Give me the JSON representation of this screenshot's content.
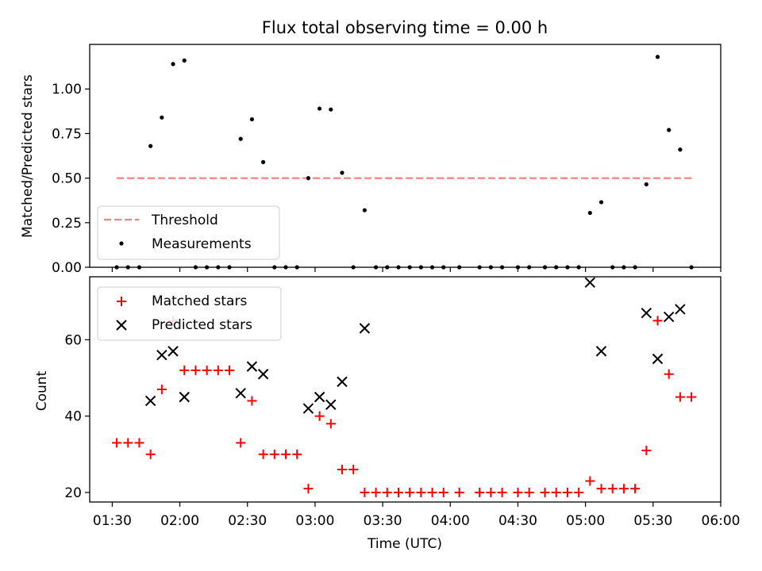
{
  "chart_data": [
    {
      "type": "scatter",
      "title": "Flux total observing time = 0.00 h",
      "xlabel": "",
      "ylabel": "Matched/Predicted stars",
      "ylim": [
        0,
        1.25
      ],
      "xlim": [
        "01:20",
        "06:00"
      ],
      "yticks": [
        "0.00",
        "0.25",
        "0.50",
        "0.75",
        "1.00"
      ],
      "legend_position": "lower-left",
      "threshold": {
        "name": "Threshold",
        "value": 0.5,
        "x_range": [
          "01:32",
          "05:48"
        ],
        "color": "#ff7f7f",
        "style": "dashed"
      },
      "series": [
        {
          "name": "Measurements",
          "color": "#000000",
          "marker": "dot",
          "points": [
            [
              "01:32",
              0
            ],
            [
              "01:37",
              0
            ],
            [
              "01:42",
              0
            ],
            [
              "01:47",
              0.68
            ],
            [
              "01:52",
              0.84
            ],
            [
              "01:57",
              1.14
            ],
            [
              "02:02",
              1.16
            ],
            [
              "02:07",
              0
            ],
            [
              "02:12",
              0
            ],
            [
              "02:17",
              0
            ],
            [
              "02:22",
              0
            ],
            [
              "02:27",
              0.72
            ],
            [
              "02:32",
              0.83
            ],
            [
              "02:37",
              0.59
            ],
            [
              "02:42",
              0
            ],
            [
              "02:47",
              0
            ],
            [
              "02:52",
              0
            ],
            [
              "02:57",
              0.5
            ],
            [
              "03:02",
              0.89
            ],
            [
              "03:07",
              0.885
            ],
            [
              "03:12",
              0.53
            ],
            [
              "03:17",
              0
            ],
            [
              "03:22",
              0.32
            ],
            [
              "03:27",
              0
            ],
            [
              "03:32",
              0
            ],
            [
              "03:37",
              0
            ],
            [
              "03:42",
              0
            ],
            [
              "03:47",
              0
            ],
            [
              "03:52",
              0
            ],
            [
              "03:57",
              0
            ],
            [
              "04:04",
              0
            ],
            [
              "04:13",
              0
            ],
            [
              "04:18",
              0
            ],
            [
              "04:23",
              0
            ],
            [
              "04:30",
              0
            ],
            [
              "04:35",
              0
            ],
            [
              "04:42",
              0
            ],
            [
              "04:47",
              0
            ],
            [
              "04:52",
              0
            ],
            [
              "04:57",
              0
            ],
            [
              "05:02",
              0.305
            ],
            [
              "05:07",
              0.365
            ],
            [
              "05:12",
              0
            ],
            [
              "05:17",
              0
            ],
            [
              "05:22",
              0
            ],
            [
              "05:27",
              0.465
            ],
            [
              "05:32",
              1.18
            ],
            [
              "05:37",
              0.77
            ],
            [
              "05:42",
              0.66
            ],
            [
              "05:47",
              0
            ]
          ]
        }
      ]
    },
    {
      "type": "scatter",
      "title": "",
      "xlabel": "Time (UTC)",
      "ylabel": "Count",
      "ylim": [
        17.5,
        76.5
      ],
      "xlim": [
        "01:20",
        "06:00"
      ],
      "yticks": [
        "20",
        "40",
        "60"
      ],
      "xticks": [
        "01:30",
        "02:00",
        "02:30",
        "03:00",
        "03:30",
        "04:00",
        "04:30",
        "05:00",
        "05:30",
        "06:00"
      ],
      "legend_position": "top-left",
      "series": [
        {
          "name": "Matched stars",
          "color": "#ff0000",
          "marker": "plus",
          "points": [
            [
              "01:32",
              33
            ],
            [
              "01:37",
              33
            ],
            [
              "01:42",
              33
            ],
            [
              "01:47",
              30
            ],
            [
              "01:52",
              47
            ],
            [
              "01:57",
              65
            ],
            [
              "02:02",
              52
            ],
            [
              "02:07",
              52
            ],
            [
              "02:12",
              52
            ],
            [
              "02:17",
              52
            ],
            [
              "02:22",
              52
            ],
            [
              "02:27",
              33
            ],
            [
              "02:32",
              44
            ],
            [
              "02:37",
              30
            ],
            [
              "02:42",
              30
            ],
            [
              "02:47",
              30
            ],
            [
              "02:52",
              30
            ],
            [
              "02:57",
              21
            ],
            [
              "03:02",
              40
            ],
            [
              "03:07",
              38
            ],
            [
              "03:12",
              26
            ],
            [
              "03:17",
              26
            ],
            [
              "03:22",
              20
            ],
            [
              "03:27",
              20
            ],
            [
              "03:32",
              20
            ],
            [
              "03:37",
              20
            ],
            [
              "03:42",
              20
            ],
            [
              "03:47",
              20
            ],
            [
              "03:52",
              20
            ],
            [
              "03:57",
              20
            ],
            [
              "04:04",
              20
            ],
            [
              "04:13",
              20
            ],
            [
              "04:18",
              20
            ],
            [
              "04:23",
              20
            ],
            [
              "04:30",
              20
            ],
            [
              "04:35",
              20
            ],
            [
              "04:42",
              20
            ],
            [
              "04:47",
              20
            ],
            [
              "04:52",
              20
            ],
            [
              "04:57",
              20
            ],
            [
              "05:02",
              23
            ],
            [
              "05:07",
              21
            ],
            [
              "05:12",
              21
            ],
            [
              "05:17",
              21
            ],
            [
              "05:22",
              21
            ],
            [
              "05:27",
              31
            ],
            [
              "05:32",
              65
            ],
            [
              "05:37",
              51
            ],
            [
              "05:42",
              45
            ],
            [
              "05:47",
              45
            ]
          ]
        },
        {
          "name": "Predicted stars",
          "color": "#000000",
          "marker": "x",
          "points": [
            [
              "01:47",
              44
            ],
            [
              "01:52",
              56
            ],
            [
              "01:57",
              57
            ],
            [
              "02:02",
              45
            ],
            [
              "02:27",
              46
            ],
            [
              "02:32",
              53
            ],
            [
              "02:37",
              51
            ],
            [
              "02:57",
              42
            ],
            [
              "03:02",
              45
            ],
            [
              "03:07",
              43
            ],
            [
              "03:12",
              49
            ],
            [
              "03:22",
              63
            ],
            [
              "05:02",
              75
            ],
            [
              "05:07",
              57
            ],
            [
              "05:27",
              67
            ],
            [
              "05:32",
              55
            ],
            [
              "05:37",
              66
            ],
            [
              "05:42",
              68
            ]
          ]
        }
      ]
    }
  ]
}
